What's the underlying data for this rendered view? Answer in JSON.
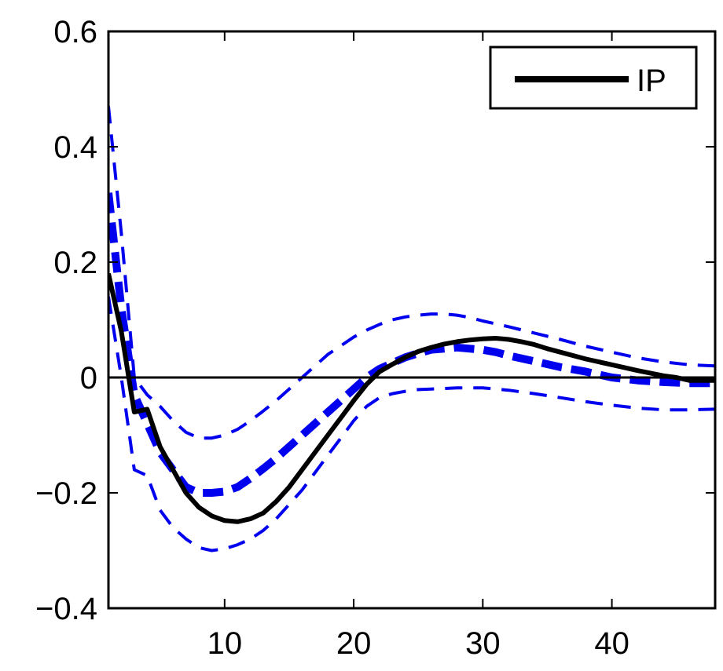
{
  "chart_data": {
    "type": "line",
    "title": "",
    "xlabel": "",
    "ylabel": "",
    "xlim": [
      1,
      48
    ],
    "ylim": [
      -0.4,
      0.6
    ],
    "xticks": [
      10,
      20,
      30,
      40
    ],
    "xtick_labels": [
      "10",
      "20",
      "30",
      "40"
    ],
    "yticks": [
      0.6,
      0.4,
      0.2,
      0,
      -0.2,
      -0.4
    ],
    "ytick_labels": [
      "0.6",
      "0.4",
      "0.2",
      "0",
      "−0.2",
      "−0.4"
    ],
    "grid": false,
    "zero_line": true,
    "legend": {
      "position": "top-right",
      "entries": [
        "IP"
      ]
    },
    "series": [
      {
        "name": "IP",
        "color": "#000000",
        "style": "solid",
        "x": [
          1,
          2,
          3,
          4,
          5,
          6,
          7,
          8,
          9,
          10,
          11,
          12,
          13,
          14,
          15,
          16,
          17,
          18,
          19,
          20,
          21,
          22,
          23,
          24,
          25,
          26,
          27,
          28,
          29,
          30,
          31,
          32,
          33,
          34,
          35,
          36,
          38,
          40,
          42,
          44,
          45,
          46,
          48
        ],
        "values": [
          0.18,
          0.08,
          -0.06,
          -0.055,
          -0.12,
          -0.16,
          -0.2,
          -0.225,
          -0.24,
          -0.248,
          -0.25,
          -0.245,
          -0.235,
          -0.215,
          -0.19,
          -0.16,
          -0.13,
          -0.1,
          -0.07,
          -0.04,
          -0.012,
          0.01,
          0.023,
          0.035,
          0.045,
          0.052,
          0.058,
          0.062,
          0.065,
          0.067,
          0.068,
          0.066,
          0.062,
          0.057,
          0.05,
          0.044,
          0.032,
          0.022,
          0.012,
          0.003,
          0.0,
          -0.005,
          -0.005
        ]
      },
      {
        "color": "#0000ee",
        "style": "dashed-bold",
        "x": [
          1,
          2,
          3,
          4,
          5,
          6,
          7,
          8,
          9,
          10,
          11,
          12,
          13,
          14,
          15,
          16,
          17,
          18,
          19,
          20,
          21,
          22,
          23,
          24,
          25,
          26,
          27,
          28,
          29,
          30,
          31,
          32,
          34,
          36,
          38,
          40,
          42,
          44,
          46,
          48
        ],
        "values": [
          0.32,
          0.12,
          -0.03,
          -0.08,
          -0.13,
          -0.16,
          -0.19,
          -0.2,
          -0.2,
          -0.198,
          -0.19,
          -0.175,
          -0.158,
          -0.14,
          -0.12,
          -0.1,
          -0.08,
          -0.06,
          -0.04,
          -0.02,
          0.0,
          0.015,
          0.025,
          0.035,
          0.042,
          0.048,
          0.05,
          0.052,
          0.05,
          0.048,
          0.044,
          0.038,
          0.028,
          0.018,
          0.01,
          0.0,
          -0.005,
          -0.008,
          -0.01,
          -0.01
        ]
      },
      {
        "color": "#0000ee",
        "style": "dashed",
        "x": [
          1,
          2,
          3,
          4,
          5,
          6,
          7,
          8,
          9,
          10,
          11,
          12,
          13,
          14,
          15,
          16,
          17,
          18,
          19,
          20,
          21,
          22,
          23,
          24,
          25,
          26,
          27,
          28,
          29,
          30,
          32,
          34,
          36,
          38,
          40,
          42,
          44,
          46,
          48
        ],
        "values": [
          0.47,
          0.25,
          0.0,
          -0.03,
          -0.05,
          -0.075,
          -0.095,
          -0.105,
          -0.105,
          -0.1,
          -0.09,
          -0.075,
          -0.058,
          -0.04,
          -0.02,
          0.0,
          0.02,
          0.04,
          0.055,
          0.07,
          0.082,
          0.092,
          0.1,
          0.105,
          0.108,
          0.11,
          0.11,
          0.108,
          0.104,
          0.098,
          0.088,
          0.077,
          0.066,
          0.054,
          0.044,
          0.034,
          0.027,
          0.022,
          0.02
        ]
      },
      {
        "color": "#0000ee",
        "style": "dashed",
        "x": [
          1,
          2,
          3,
          4,
          5,
          6,
          7,
          8,
          9,
          10,
          11,
          12,
          13,
          14,
          15,
          16,
          17,
          18,
          19,
          20,
          21,
          22,
          23,
          24,
          25,
          26,
          27,
          28,
          29,
          30,
          32,
          34,
          36,
          38,
          40,
          42,
          44,
          46,
          48
        ],
        "values": [
          0.14,
          0.0,
          -0.16,
          -0.17,
          -0.23,
          -0.26,
          -0.28,
          -0.295,
          -0.3,
          -0.297,
          -0.29,
          -0.28,
          -0.265,
          -0.245,
          -0.22,
          -0.195,
          -0.165,
          -0.135,
          -0.105,
          -0.075,
          -0.05,
          -0.035,
          -0.028,
          -0.024,
          -0.021,
          -0.02,
          -0.019,
          -0.018,
          -0.018,
          -0.018,
          -0.022,
          -0.028,
          -0.035,
          -0.042,
          -0.048,
          -0.053,
          -0.056,
          -0.056,
          -0.055
        ]
      }
    ]
  }
}
